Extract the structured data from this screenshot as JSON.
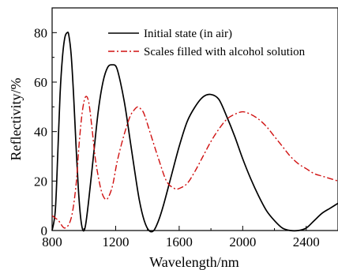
{
  "chart_data": {
    "type": "line",
    "title": "",
    "xlabel": "Wavelength/nm",
    "ylabel": "Reflectivity/%",
    "xlim": [
      800,
      2600
    ],
    "ylim": [
      0,
      90
    ],
    "xticks": [
      800,
      1200,
      1600,
      2000,
      2400
    ],
    "yticks": [
      0,
      20,
      40,
      60,
      80
    ],
    "x_tick_labels": [
      "800",
      "1200",
      "1600",
      "2000",
      "2400"
    ],
    "y_tick_labels": [
      "0",
      "20",
      "40",
      "60",
      "80"
    ],
    "legend": {
      "placement": "top-right"
    },
    "grid": false,
    "series": [
      {
        "name": "Initial state (in air)",
        "color": "#000000",
        "line_style": "solid",
        "x": [
          800,
          820,
          835,
          850,
          865,
          880,
          895,
          905,
          920,
          935,
          950,
          965,
          980,
          995,
          1010,
          1030,
          1060,
          1090,
          1120,
          1150,
          1180,
          1205,
          1230,
          1260,
          1290,
          1320,
          1350,
          1380,
          1410,
          1440,
          1470,
          1500,
          1550,
          1600,
          1650,
          1700,
          1750,
          1800,
          1850,
          1900,
          1950,
          2000,
          2050,
          2100,
          2150,
          2200,
          2250,
          2300,
          2350,
          2400,
          2450,
          2500,
          2550,
          2600
        ],
        "y": [
          0,
          8,
          30,
          55,
          70,
          78,
          80,
          79,
          71,
          55,
          35,
          17,
          5,
          0,
          2,
          12,
          30,
          48,
          60,
          66,
          67,
          66,
          60,
          50,
          37,
          24,
          12,
          4,
          0,
          0,
          4,
          10,
          22,
          34,
          44,
          50,
          54,
          55,
          53,
          46,
          38,
          29,
          21,
          14,
          8,
          4,
          1,
          0,
          0,
          1,
          4,
          7,
          9,
          11
        ]
      },
      {
        "name": "Scales filled with alcohol solution",
        "color": "#d01010",
        "line_style": "dash-dot",
        "x": [
          800,
          840,
          880,
          920,
          950,
          970,
          990,
          1010,
          1030,
          1050,
          1070,
          1090,
          1110,
          1130,
          1150,
          1180,
          1210,
          1250,
          1290,
          1320,
          1340,
          1360,
          1380,
          1420,
          1470,
          1520,
          1570,
          1600,
          1650,
          1700,
          1750,
          1800,
          1850,
          1900,
          1950,
          2000,
          2050,
          2100,
          2150,
          2200,
          2250,
          2300,
          2350,
          2400,
          2450,
          2500,
          2550,
          2600
        ],
        "y": [
          6,
          4,
          1,
          5,
          18,
          35,
          48,
          54,
          52,
          42,
          30,
          22,
          16,
          13,
          13,
          18,
          28,
          38,
          46,
          49,
          50,
          49,
          47,
          39,
          29,
          20,
          17,
          17,
          19,
          24,
          30,
          36,
          41,
          45,
          47,
          48,
          47,
          45,
          42,
          38,
          34,
          30,
          27,
          25,
          23,
          22,
          21,
          20
        ]
      }
    ]
  }
}
